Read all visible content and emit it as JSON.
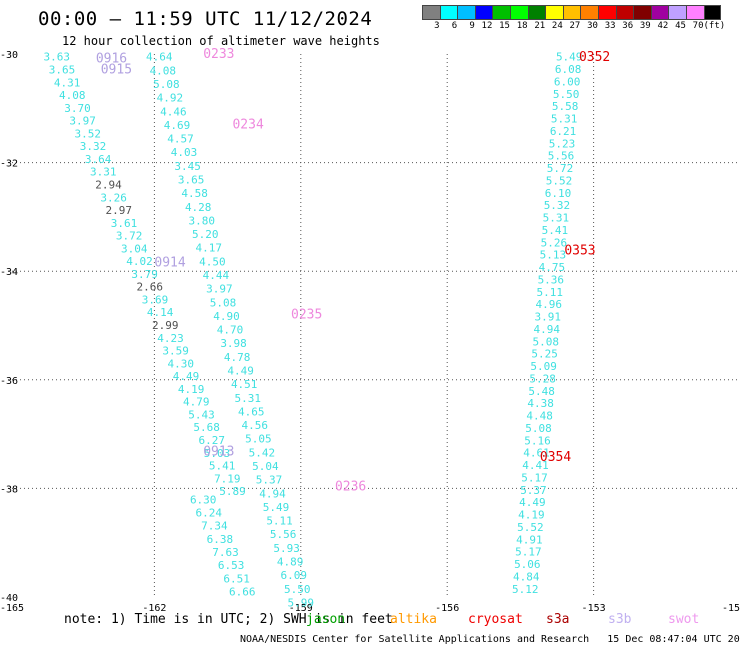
{
  "title": "00:00 — 11:59 UTC 11/12/2024",
  "subtitle": "12 hour collection of altimeter wave heights",
  "legend": {
    "colors": [
      "#808080",
      "#00ffff",
      "#00bfff",
      "#0000ff",
      "#00c000",
      "#00ff00",
      "#008000",
      "#ffff00",
      "#ffc000",
      "#ff8000",
      "#ff0000",
      "#c00000",
      "#800000",
      "#a000a0",
      "#c0a0ff",
      "#ff80ff",
      "#000000"
    ],
    "labels": [
      "3",
      "6",
      "9",
      "12",
      "15",
      "18",
      "21",
      "24",
      "27",
      "30",
      "33",
      "36",
      "39",
      "42",
      "45",
      "70",
      "(ft)"
    ]
  },
  "axes": {
    "x_ticks": [
      "-165",
      "-162",
      "-159",
      "-156",
      "-153",
      "-15"
    ],
    "y_ticks": [
      "-30",
      "-32",
      "-34",
      "-36",
      "-38",
      "-40"
    ],
    "lon_range": [
      -165,
      -150
    ],
    "lat_range": [
      -40,
      -30
    ]
  },
  "colors": {
    "cyan": "#40e0e0",
    "gray": "#505050",
    "lavender": "#b0a0e0",
    "pink": "#ee88dd",
    "red": "#e00000",
    "jason": "#00a000",
    "altika": "#ff9900",
    "cryosat": "#ee0000",
    "s3a": "#aa0000",
    "s3b": "#c0b0f0",
    "swot": "#ee99ee"
  },
  "tracks": [
    {
      "name": "track-a",
      "lon_start": -164.0,
      "lon_end": -160.4,
      "lat_start": -30.05,
      "lat_end": -38.05,
      "values": [
        "3.63",
        "3.65",
        "4.31",
        "4.08",
        "3.70",
        "3.97",
        "3.52",
        "3.32",
        "3.64",
        "3.31",
        "2.94",
        "3.26",
        "2.97",
        "3.61",
        "3.72",
        "3.04",
        "4.02",
        "3.79",
        "2.66",
        "3.69",
        "4.14",
        "2.99",
        "4.23",
        "3.59",
        "4.30",
        "4.49",
        "4.19",
        "4.79",
        "5.43",
        "5.68",
        "6.27",
        "5.03",
        "5.41",
        "7.19",
        "5.89"
      ],
      "colors": [
        "c",
        "c",
        "c",
        "c",
        "c",
        "c",
        "c",
        "c",
        "c",
        "c",
        "g",
        "c",
        "g",
        "c",
        "c",
        "c",
        "c",
        "c",
        "g",
        "c",
        "c",
        "g",
        "c",
        "c",
        "c",
        "c",
        "c",
        "c",
        "c",
        "c",
        "c",
        "c",
        "c",
        "c",
        "c"
      ]
    },
    {
      "name": "track-b",
      "lon_start": -161.9,
      "lon_end": -159.0,
      "lat_start": -30.05,
      "lat_end": -40.1,
      "values": [
        "4.64",
        "4.08",
        "5.08",
        "4.92",
        "4.46",
        "4.69",
        "4.57",
        "4.03",
        "3.45",
        "3.65",
        "4.58",
        "4.28",
        "3.80",
        "5.20",
        "4.17",
        "4.50",
        "4.44",
        "3.97",
        "5.08",
        "4.90",
        "4.70",
        "3.98",
        "4.78",
        "4.49",
        "4.51",
        "5.31",
        "4.65",
        "4.56",
        "5.05",
        "5.42",
        "5.04",
        "5.37",
        "4.94",
        "5.49",
        "5.11",
        "5.56",
        "5.93",
        "4.89",
        "6.09",
        "5.50",
        "5.99"
      ],
      "colors": [
        "c",
        "c",
        "c",
        "c",
        "c",
        "c",
        "c",
        "c",
        "c",
        "c",
        "c",
        "c",
        "c",
        "c",
        "c",
        "c",
        "c",
        "c",
        "c",
        "c",
        "c",
        "c",
        "c",
        "c",
        "c",
        "c",
        "c",
        "c",
        "c",
        "c",
        "c",
        "c",
        "c",
        "c",
        "c",
        "c",
        "c",
        "c",
        "c",
        "c",
        "c"
      ]
    },
    {
      "name": "track-c",
      "lon_start": -161.0,
      "lon_end": -160.2,
      "lat_start": -38.2,
      "lat_end": -39.9,
      "values": [
        "6.30",
        "6.24",
        "7.34",
        "6.38",
        "7.63",
        "6.53",
        "6.51",
        "6.66"
      ],
      "colors": [
        "c",
        "c",
        "c",
        "c",
        "c",
        "c",
        "c",
        "c"
      ]
    },
    {
      "name": "track-d",
      "lon_start": -153.5,
      "lon_end": -154.4,
      "lat_start": -30.05,
      "lat_end": -39.85,
      "values": [
        "5.49",
        "6.08",
        "6.00",
        "5.50",
        "5.58",
        "5.31",
        "6.21",
        "5.23",
        "5.56",
        "5.72",
        "5.52",
        "6.10",
        "5.32",
        "5.31",
        "5.41",
        "5.26",
        "5.13",
        "4.75",
        "5.36",
        "5.11",
        "4.96",
        "3.91",
        "4.94",
        "5.08",
        "5.25",
        "5.09",
        "5.28",
        "5.48",
        "4.38",
        "4.48",
        "5.08",
        "5.16",
        "4.61",
        "4.41",
        "5.17",
        "5.37",
        "4.49",
        "4.19",
        "5.52",
        "4.91",
        "5.17",
        "5.06",
        "4.84",
        "5.12"
      ],
      "colors": [
        "c",
        "c",
        "c",
        "c",
        "c",
        "c",
        "c",
        "c",
        "c",
        "c",
        "c",
        "c",
        "c",
        "c",
        "c",
        "c",
        "c",
        "c",
        "c",
        "c",
        "c",
        "c",
        "c",
        "c",
        "c",
        "c",
        "c",
        "c",
        "c",
        "c",
        "c",
        "c",
        "c",
        "c",
        "c",
        "c",
        "c",
        "c",
        "c",
        "c",
        "c",
        "c",
        "c",
        "c"
      ]
    }
  ],
  "time_labels": [
    {
      "text": "0916",
      "lon": -163.2,
      "lat": -30.06,
      "color": "lavender"
    },
    {
      "text": "0915",
      "lon": -163.1,
      "lat": -30.27,
      "color": "lavender"
    },
    {
      "text": "0233",
      "lon": -161.0,
      "lat": -29.98,
      "color": "pink"
    },
    {
      "text": "0234",
      "lon": -160.4,
      "lat": -31.28,
      "color": "pink"
    },
    {
      "text": "0914",
      "lon": -162.0,
      "lat": -33.82,
      "color": "lavender"
    },
    {
      "text": "0235",
      "lon": -159.2,
      "lat": -34.78,
      "color": "pink"
    },
    {
      "text": "0913",
      "lon": -161.0,
      "lat": -37.3,
      "color": "lavender"
    },
    {
      "text": "0236",
      "lon": -158.3,
      "lat": -37.95,
      "color": "pink"
    },
    {
      "text": "0352",
      "lon": -153.3,
      "lat": -30.04,
      "color": "red"
    },
    {
      "text": "0353",
      "lon": -153.6,
      "lat": -33.6,
      "color": "red"
    },
    {
      "text": "0354",
      "lon": -154.1,
      "lat": -37.4,
      "color": "red"
    }
  ],
  "footer": {
    "note": "note: 1) Time is in UTC; 2) SWH is in feet",
    "satellites": [
      {
        "name": "jason",
        "color": "jason"
      },
      {
        "name": "altika",
        "color": "altika"
      },
      {
        "name": "cryosat",
        "color": "cryosat"
      },
      {
        "name": "s3a",
        "color": "s3a"
      },
      {
        "name": "s3b",
        "color": "s3b"
      },
      {
        "name": "swot",
        "color": "swot"
      }
    ],
    "credit": "NOAA/NESDIS Center for Satellite Applications and Research",
    "timestamp": "15 Dec 08:47:04 UTC 2024"
  }
}
